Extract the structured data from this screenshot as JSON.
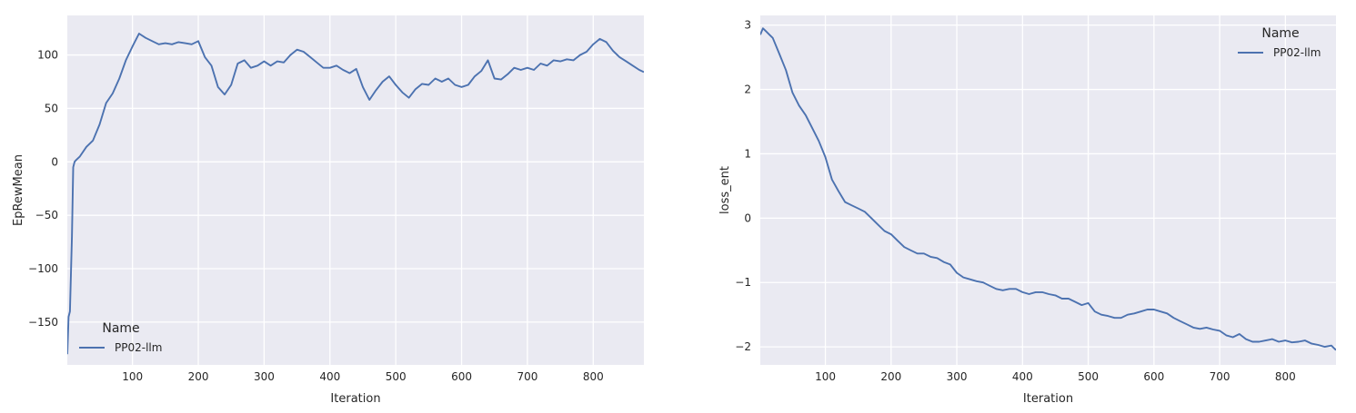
{
  "chart_data": [
    {
      "type": "line",
      "title": "",
      "xlabel": "Iteration",
      "ylabel": "EpRewMean",
      "xlim": [
        1,
        877
      ],
      "ylim": [
        -190,
        137
      ],
      "xticks": [
        100,
        200,
        300,
        400,
        500,
        600,
        700,
        800
      ],
      "yticks": [
        -150,
        -100,
        -50,
        0,
        50,
        100
      ],
      "ytick_labels": [
        "−150",
        "−100",
        "−50",
        "0",
        "50",
        "100"
      ],
      "grid": true,
      "legend": {
        "title": "Name",
        "placement": "lower-left",
        "entries": [
          "PP02-llm"
        ]
      },
      "series": [
        {
          "name": "PP02-llm",
          "color": "#4c72b0",
          "x": [
            1,
            3,
            5,
            8,
            10,
            12,
            15,
            20,
            30,
            40,
            50,
            60,
            70,
            80,
            90,
            100,
            110,
            120,
            130,
            140,
            150,
            160,
            170,
            180,
            190,
            200,
            210,
            220,
            230,
            240,
            250,
            260,
            270,
            280,
            290,
            300,
            310,
            320,
            330,
            340,
            350,
            360,
            370,
            380,
            390,
            400,
            410,
            420,
            430,
            440,
            450,
            460,
            470,
            480,
            490,
            500,
            510,
            520,
            530,
            540,
            550,
            560,
            570,
            580,
            590,
            600,
            610,
            620,
            630,
            640,
            650,
            660,
            670,
            680,
            690,
            700,
            710,
            720,
            730,
            740,
            750,
            760,
            770,
            780,
            790,
            800,
            810,
            820,
            830,
            840,
            850,
            860,
            870,
            877
          ],
          "values": [
            -180,
            -145,
            -140,
            -70,
            -5,
            0,
            2,
            5,
            14,
            20,
            35,
            55,
            64,
            78,
            95,
            108,
            120,
            116,
            113,
            110,
            111,
            110,
            112,
            111,
            110,
            113,
            98,
            90,
            70,
            63,
            72,
            92,
            95,
            88,
            90,
            94,
            90,
            94,
            93,
            100,
            105,
            103,
            98,
            93,
            88,
            88,
            90,
            86,
            83,
            87,
            70,
            58,
            67,
            75,
            80,
            72,
            65,
            60,
            68,
            73,
            72,
            78,
            75,
            78,
            72,
            70,
            72,
            80,
            85,
            95,
            78,
            77,
            82,
            88,
            86,
            88,
            86,
            92,
            90,
            95,
            94,
            96,
            95,
            100,
            103,
            110,
            115,
            112,
            104,
            98,
            94,
            90,
            86,
            84
          ]
        }
      ]
    },
    {
      "type": "line",
      "title": "",
      "xlabel": "Iteration",
      "ylabel": "loss_ent",
      "xlim": [
        1,
        877
      ],
      "ylim": [
        -2.28,
        3.15
      ],
      "xticks": [
        100,
        200,
        300,
        400,
        500,
        600,
        700,
        800
      ],
      "yticks": [
        -2,
        -1,
        0,
        1,
        2,
        3
      ],
      "ytick_labels": [
        "−2",
        "−1",
        "0",
        "1",
        "2",
        "3"
      ],
      "grid": true,
      "legend": {
        "title": "Name",
        "placement": "top-right",
        "entries": [
          "PP02-llm"
        ]
      },
      "series": [
        {
          "name": "PP02-llm",
          "color": "#4c72b0",
          "x": [
            1,
            5,
            10,
            15,
            20,
            30,
            40,
            50,
            60,
            70,
            80,
            90,
            100,
            110,
            120,
            130,
            140,
            150,
            160,
            170,
            180,
            190,
            200,
            210,
            220,
            230,
            240,
            250,
            260,
            270,
            280,
            290,
            300,
            310,
            320,
            330,
            340,
            350,
            360,
            370,
            380,
            390,
            400,
            410,
            420,
            430,
            440,
            450,
            460,
            470,
            480,
            490,
            500,
            510,
            520,
            530,
            540,
            550,
            560,
            570,
            580,
            590,
            600,
            610,
            620,
            630,
            640,
            650,
            660,
            670,
            680,
            690,
            700,
            710,
            720,
            730,
            740,
            750,
            760,
            770,
            780,
            790,
            800,
            810,
            820,
            830,
            840,
            850,
            860,
            870,
            877
          ],
          "values": [
            2.85,
            2.95,
            2.9,
            2.85,
            2.8,
            2.55,
            2.3,
            1.95,
            1.75,
            1.6,
            1.4,
            1.2,
            0.95,
            0.6,
            0.42,
            0.25,
            0.2,
            0.15,
            0.1,
            0.0,
            -0.1,
            -0.2,
            -0.25,
            -0.35,
            -0.45,
            -0.5,
            -0.55,
            -0.55,
            -0.6,
            -0.62,
            -0.68,
            -0.72,
            -0.85,
            -0.92,
            -0.95,
            -0.98,
            -1.0,
            -1.05,
            -1.1,
            -1.12,
            -1.1,
            -1.1,
            -1.15,
            -1.18,
            -1.15,
            -1.15,
            -1.18,
            -1.2,
            -1.25,
            -1.25,
            -1.3,
            -1.35,
            -1.32,
            -1.45,
            -1.5,
            -1.52,
            -1.55,
            -1.55,
            -1.5,
            -1.48,
            -1.45,
            -1.42,
            -1.42,
            -1.45,
            -1.48,
            -1.55,
            -1.6,
            -1.65,
            -1.7,
            -1.72,
            -1.7,
            -1.73,
            -1.75,
            -1.82,
            -1.85,
            -1.8,
            -1.88,
            -1.92,
            -1.92,
            -1.9,
            -1.88,
            -1.92,
            -1.9,
            -1.93,
            -1.92,
            -1.9,
            -1.95,
            -1.97,
            -2.0,
            -1.98,
            -2.05
          ]
        }
      ]
    }
  ]
}
